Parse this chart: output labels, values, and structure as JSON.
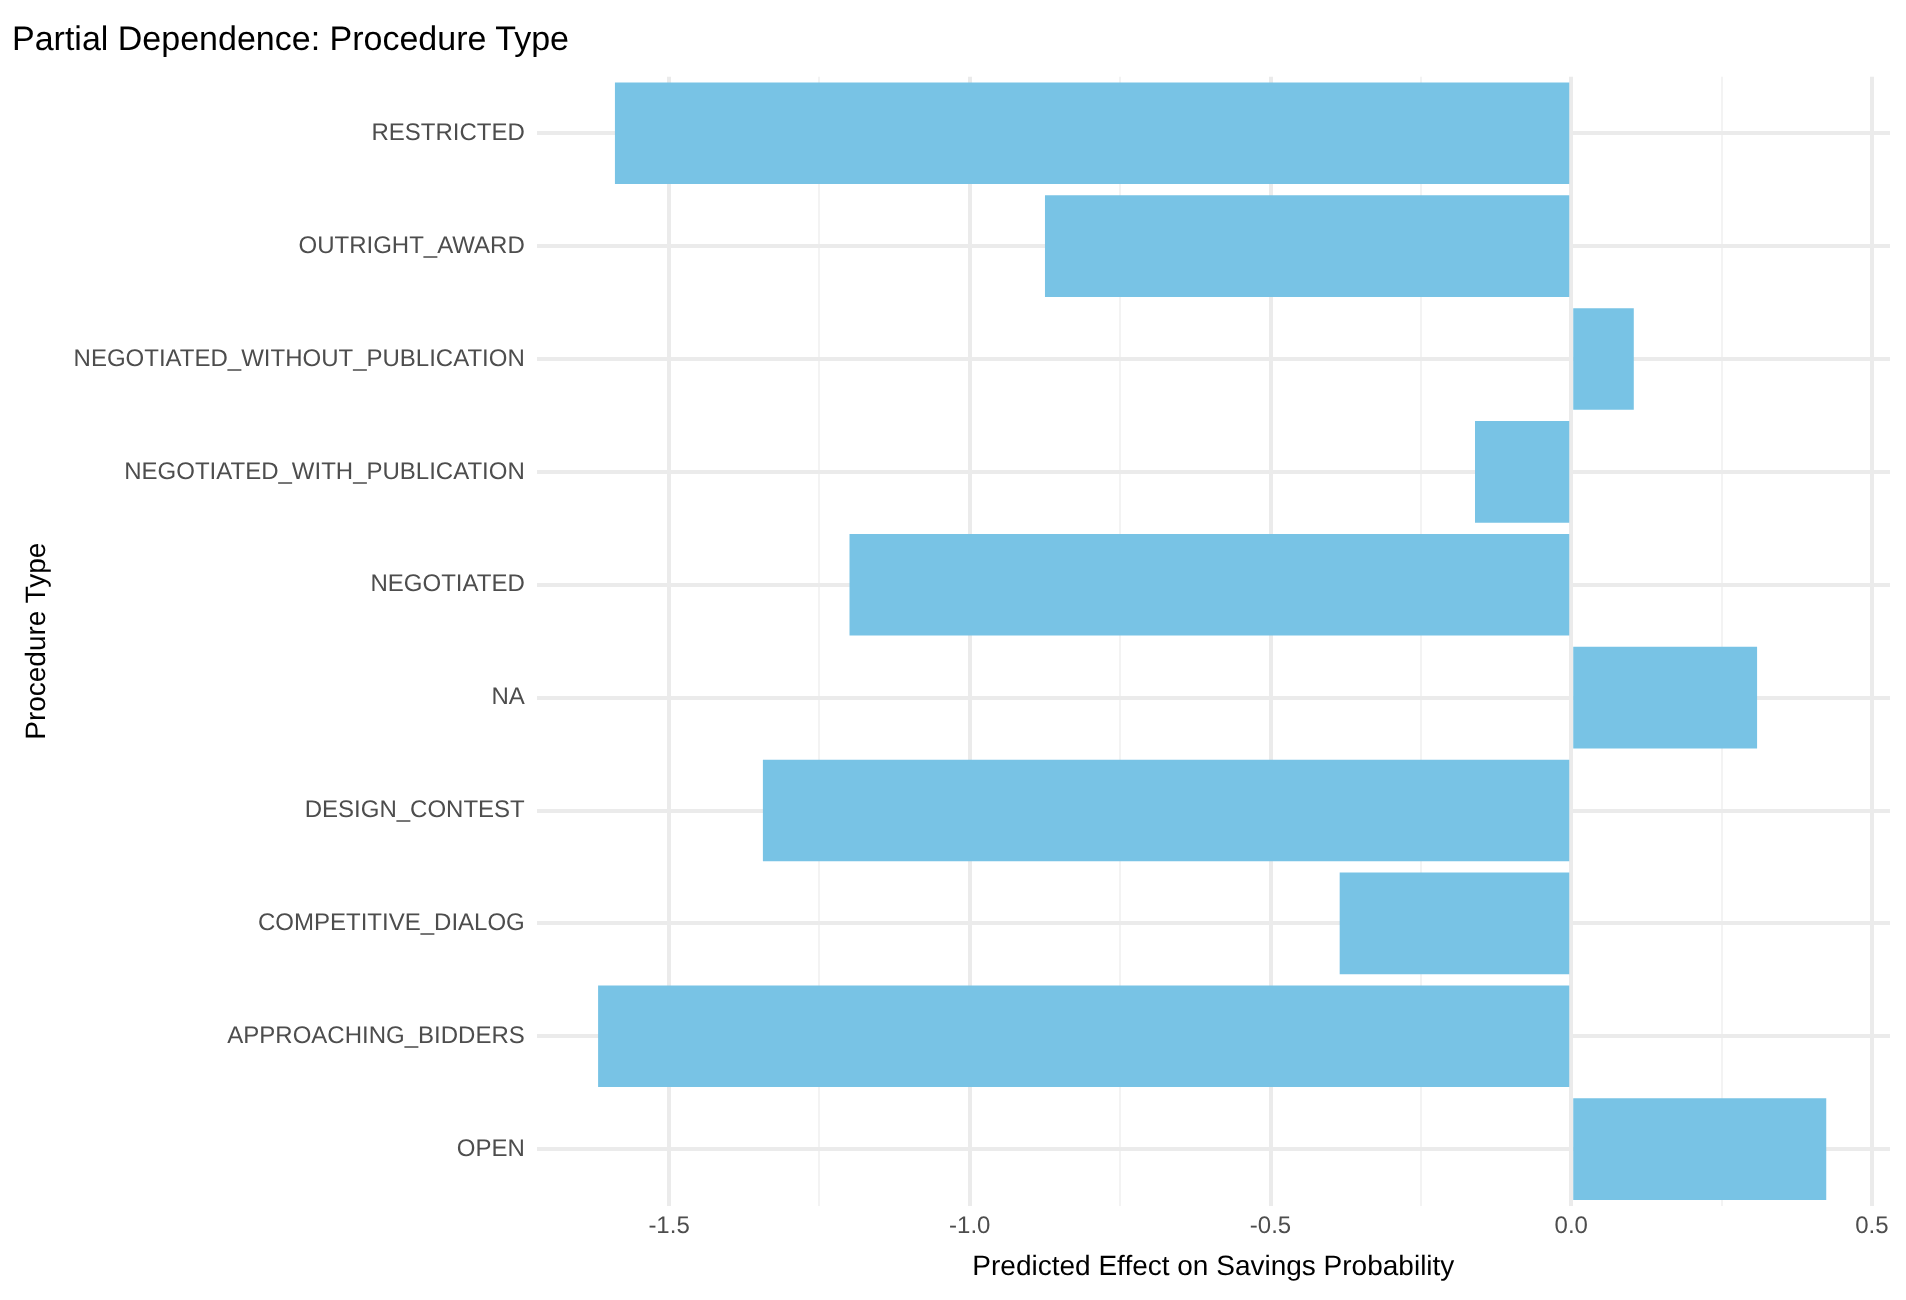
{
  "chart_data": {
    "type": "bar",
    "orientation": "horizontal",
    "title": "Partial Dependence: Procedure Type",
    "xlabel": "Predicted Effect on Savings Probability",
    "ylabel": "Procedure Type",
    "categories": [
      "RESTRICTED",
      "OUTRIGHT_AWARD",
      "NEGOTIATED_WITHOUT_PUBLICATION",
      "NEGOTIATED_WITH_PUBLICATION",
      "NEGOTIATED",
      "NA",
      "DESIGN_CONTEST",
      "COMPETITIVE_DIALOG",
      "APPROACHING_BIDDERS",
      "OPEN"
    ],
    "values": [
      -1.59,
      -0.875,
      0.104,
      -0.16,
      -1.2,
      0.309,
      -1.344,
      -0.385,
      -1.618,
      0.424
    ],
    "color": "#78c3e5",
    "xlim": [
      -1.72,
      0.53
    ],
    "xticks": [
      -1.5,
      {
        "value": -1.25,
        "label": null
      },
      {
        "value": -1.0,
        "label": "-1.0"
      },
      {
        "value": -0.75,
        "label": null
      },
      -0.5,
      {
        "value": -0.25,
        "label": null
      },
      {
        "value": 0.0,
        "label": "0.0"
      },
      {
        "value": 0.25,
        "label": null
      },
      0.5
    ],
    "grid": true,
    "legend": false
  }
}
